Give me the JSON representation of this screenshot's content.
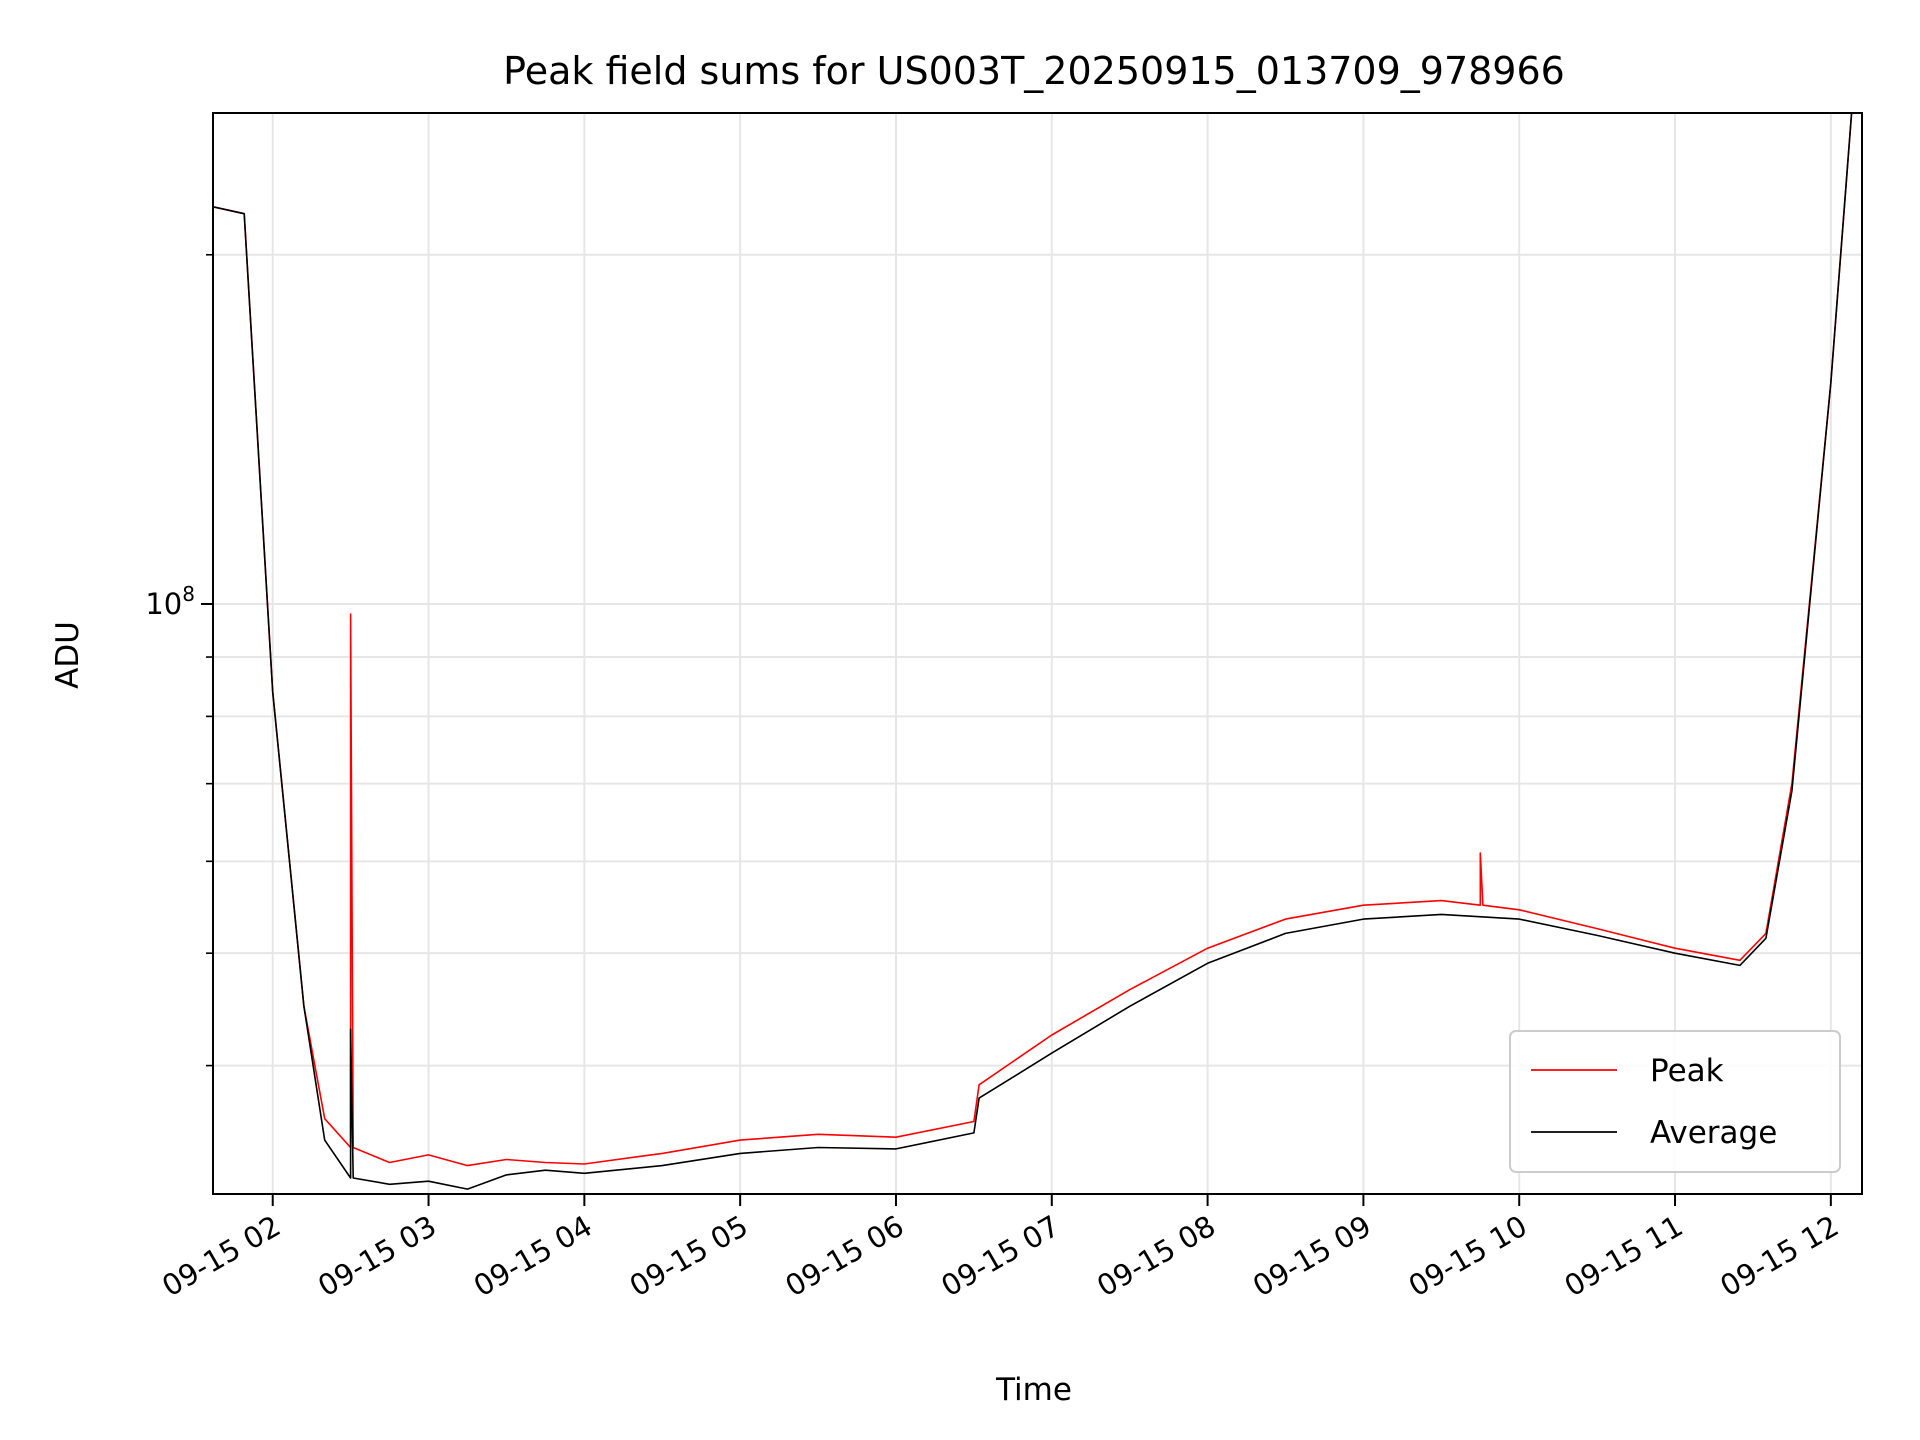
{
  "chart_data": {
    "type": "line",
    "title": "Peak field sums for US003T_20250915_013709_978966",
    "xlabel": "Time",
    "ylabel": "ADU",
    "y_scale": "log",
    "x_range": [
      "2025-09-15 01:37",
      "2025-09-15 12:12"
    ],
    "y_range": [
      31000000,
      265000000
    ],
    "x_tick_labels": [
      "09-15 02",
      "09-15 03",
      "09-15 04",
      "09-15 05",
      "09-15 06",
      "09-15 07",
      "09-15 08",
      "09-15 09",
      "09-15 10",
      "09-15 11",
      "09-15 12"
    ],
    "y_tick_label": {
      "base": "10",
      "exponent": "8",
      "value": 100000000
    },
    "grid": true,
    "legend_position": "lower-right",
    "legend": [
      "Peak",
      "Average"
    ],
    "series": [
      {
        "name": "Peak",
        "color": "#ff0000",
        "points": [
          [
            "2025-09-15 01:37",
            220000000
          ],
          [
            "2025-09-15 01:49",
            217000000
          ],
          [
            "2025-09-15 02:00",
            84000000
          ],
          [
            "2025-09-15 02:12",
            45000000
          ],
          [
            "2025-09-15 02:20",
            36000000
          ],
          [
            "2025-09-15 02:30",
            34000000
          ],
          [
            "2025-09-15 02:30",
            98000000
          ],
          [
            "2025-09-15 02:31",
            34000000
          ],
          [
            "2025-09-15 02:45",
            33000000
          ],
          [
            "2025-09-15 03:00",
            33500000
          ],
          [
            "2025-09-15 03:15",
            32800000
          ],
          [
            "2025-09-15 03:30",
            33200000
          ],
          [
            "2025-09-15 03:45",
            33000000
          ],
          [
            "2025-09-15 04:00",
            32900000
          ],
          [
            "2025-09-15 04:30",
            33600000
          ],
          [
            "2025-09-15 05:00",
            34500000
          ],
          [
            "2025-09-15 05:30",
            34900000
          ],
          [
            "2025-09-15 06:00",
            34700000
          ],
          [
            "2025-09-15 06:30",
            35800000
          ],
          [
            "2025-09-15 06:32",
            38500000
          ],
          [
            "2025-09-15 07:00",
            42500000
          ],
          [
            "2025-09-15 07:30",
            46500000
          ],
          [
            "2025-09-15 08:00",
            50500000
          ],
          [
            "2025-09-15 08:30",
            53500000
          ],
          [
            "2025-09-15 09:00",
            55000000
          ],
          [
            "2025-09-15 09:30",
            55500000
          ],
          [
            "2025-09-15 09:45",
            55000000
          ],
          [
            "2025-09-15 09:45",
            61000000
          ],
          [
            "2025-09-15 09:46",
            55000000
          ],
          [
            "2025-09-15 10:00",
            54500000
          ],
          [
            "2025-09-15 10:30",
            52500000
          ],
          [
            "2025-09-15 11:00",
            50500000
          ],
          [
            "2025-09-15 11:25",
            49300000
          ],
          [
            "2025-09-15 11:35",
            52000000
          ],
          [
            "2025-09-15 11:45",
            70000000
          ],
          [
            "2025-09-15 12:00",
            155000000
          ],
          [
            "2025-09-15 12:08",
            265000000
          ]
        ]
      },
      {
        "name": "Average",
        "color": "#000000",
        "points": [
          [
            "2025-09-15 01:37",
            220000000
          ],
          [
            "2025-09-15 01:49",
            217000000
          ],
          [
            "2025-09-15 02:00",
            84000000
          ],
          [
            "2025-09-15 02:12",
            45000000
          ],
          [
            "2025-09-15 02:20",
            34500000
          ],
          [
            "2025-09-15 02:30",
            32000000
          ],
          [
            "2025-09-15 02:30",
            43000000
          ],
          [
            "2025-09-15 02:31",
            32000000
          ],
          [
            "2025-09-15 02:45",
            31600000
          ],
          [
            "2025-09-15 03:00",
            31800000
          ],
          [
            "2025-09-15 03:15",
            31300000
          ],
          [
            "2025-09-15 03:30",
            32200000
          ],
          [
            "2025-09-15 03:45",
            32500000
          ],
          [
            "2025-09-15 04:00",
            32300000
          ],
          [
            "2025-09-15 04:30",
            32800000
          ],
          [
            "2025-09-15 05:00",
            33600000
          ],
          [
            "2025-09-15 05:30",
            34000000
          ],
          [
            "2025-09-15 06:00",
            33900000
          ],
          [
            "2025-09-15 06:30",
            35000000
          ],
          [
            "2025-09-15 06:32",
            37500000
          ],
          [
            "2025-09-15 07:00",
            41000000
          ],
          [
            "2025-09-15 07:30",
            45000000
          ],
          [
            "2025-09-15 08:00",
            49000000
          ],
          [
            "2025-09-15 08:30",
            52000000
          ],
          [
            "2025-09-15 09:00",
            53500000
          ],
          [
            "2025-09-15 09:30",
            54000000
          ],
          [
            "2025-09-15 10:00",
            53500000
          ],
          [
            "2025-09-15 10:30",
            51800000
          ],
          [
            "2025-09-15 11:00",
            50000000
          ],
          [
            "2025-09-15 11:25",
            48800000
          ],
          [
            "2025-09-15 11:35",
            51500000
          ],
          [
            "2025-09-15 11:45",
            69000000
          ],
          [
            "2025-09-15 12:00",
            155000000
          ],
          [
            "2025-09-15 12:08",
            265000000
          ]
        ]
      }
    ]
  }
}
